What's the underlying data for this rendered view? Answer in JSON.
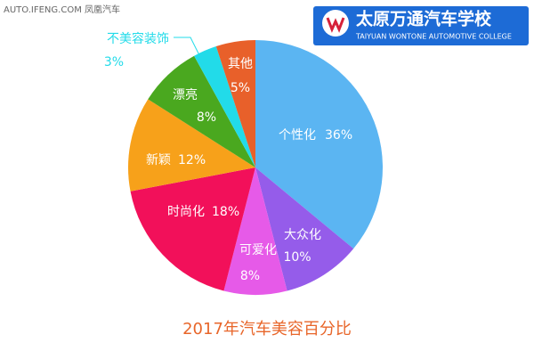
{
  "watermark": "AUTO.IFENG.COM 凤凰汽车",
  "logo": {
    "name": "太原万通汽车学校",
    "subtitle": "TAIYUAN WONTONE AUTOMOTIVE COLLEGE"
  },
  "chart_data": {
    "type": "pie",
    "title": "2017年汽车美容百分比",
    "categories": [
      "个性化",
      "大众化",
      "可爱化",
      "时尚化",
      "新颖",
      "漂亮",
      "不美容装饰",
      "其他"
    ],
    "values": [
      36,
      10,
      8,
      18,
      12,
      8,
      3,
      5
    ],
    "value_labels": [
      "36%",
      "10%",
      "8%",
      "18%",
      "12%",
      "8%",
      "3%",
      "5%"
    ],
    "colors": [
      "#5bb5f2",
      "#955cea",
      "#e65ae8",
      "#f2105a",
      "#f7a11a",
      "#4aa81f",
      "#22dbe9",
      "#e8602a"
    ]
  }
}
